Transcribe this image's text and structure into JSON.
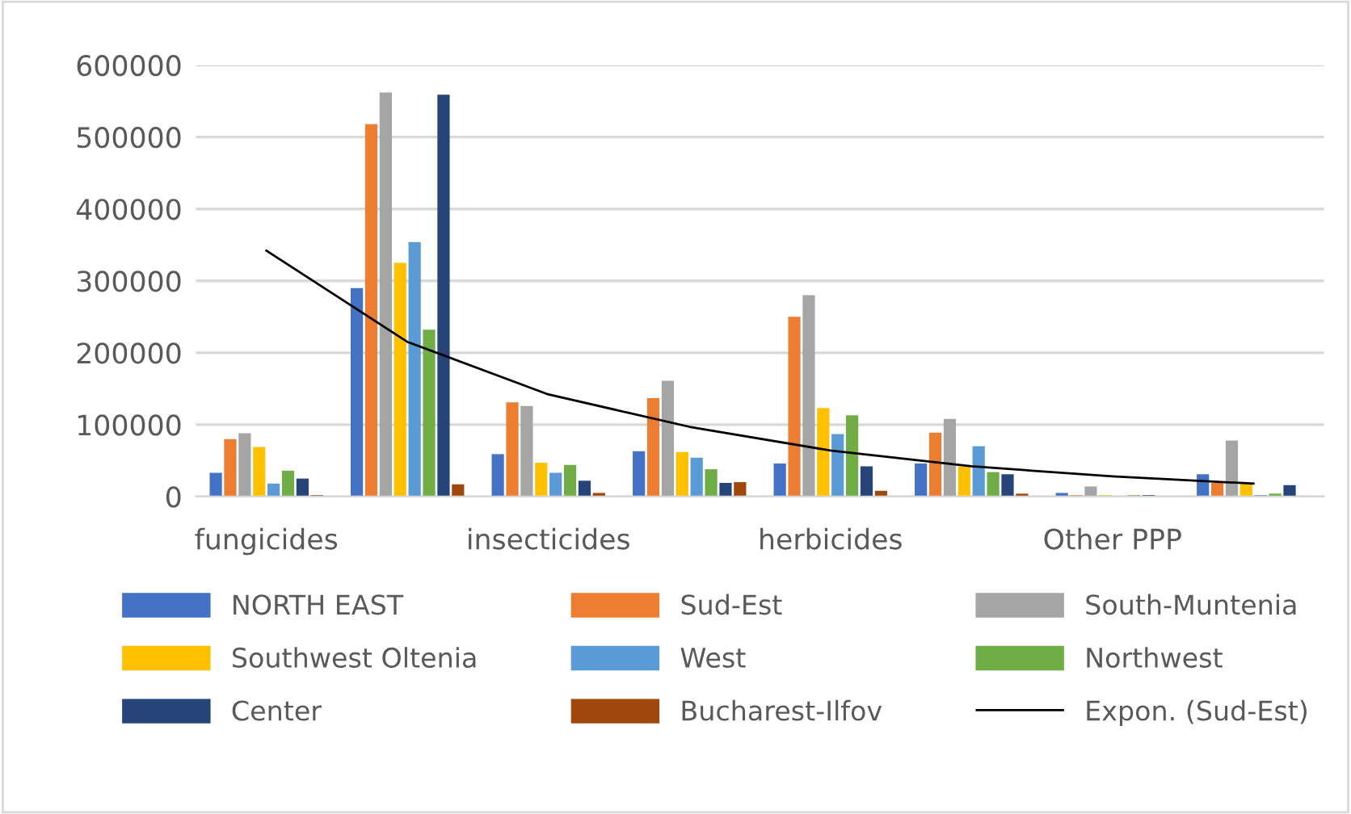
{
  "chart_data": {
    "type": "bar",
    "categories": [
      "fungicides",
      null,
      "insecticides",
      null,
      "herbicides",
      null,
      "Other PPP",
      null
    ],
    "series": [
      {
        "name": "NORTH EAST",
        "color": "#4472c4",
        "values": [
          33000,
          290000,
          59000,
          63000,
          46000,
          46000,
          5000,
          31000
        ]
      },
      {
        "name": "Sud-Est",
        "color": "#ed7d31",
        "values": [
          80000,
          518000,
          131000,
          137000,
          250000,
          89000,
          2000,
          19000
        ]
      },
      {
        "name": "South-Muntenia",
        "color": "#a5a5a5",
        "values": [
          88000,
          562000,
          126000,
          161000,
          280000,
          108000,
          14000,
          78000
        ]
      },
      {
        "name": "Southwest Oltenia",
        "color": "#ffc000",
        "values": [
          69000,
          325000,
          47000,
          62000,
          123000,
          42000,
          2000,
          19000
        ]
      },
      {
        "name": "West",
        "color": "#5b9bd5",
        "values": [
          18000,
          354000,
          33000,
          54000,
          87000,
          70000,
          0,
          2000
        ]
      },
      {
        "name": "Northwest",
        "color": "#70ad47",
        "values": [
          36000,
          232000,
          44000,
          38000,
          113000,
          34000,
          2000,
          4000
        ]
      },
      {
        "name": "Center",
        "color": "#264478",
        "values": [
          25000,
          559000,
          22000,
          19000,
          42000,
          31000,
          2000,
          16000
        ]
      },
      {
        "name": "Bucharest-Ilfov",
        "color": "#9e480e",
        "values": [
          2000,
          17000,
          5000,
          20000,
          8000,
          4000,
          0,
          0
        ]
      },
      {
        "name": "Expon. (Sud-Est)",
        "type": "line",
        "color": "#000000",
        "values": [
          342000,
          215000,
          142000,
          97000,
          64000,
          42000,
          28000,
          18000
        ]
      }
    ],
    "ylim": [
      0,
      600000
    ],
    "yticks": [
      0,
      100000,
      200000,
      300000,
      400000,
      500000,
      600000
    ],
    "grid": "y",
    "legend": "bottom"
  }
}
